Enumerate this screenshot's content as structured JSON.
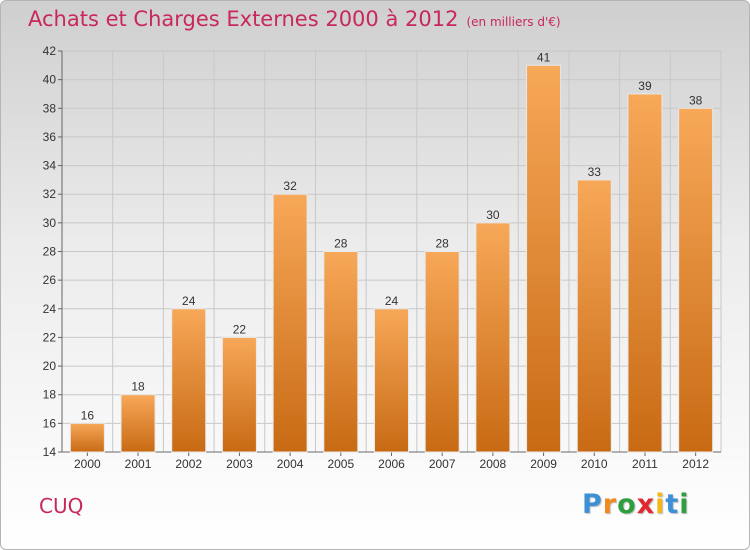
{
  "header": {
    "title": "Achats et Charges Externes 2000 à 2012",
    "subtitle": "(en milliers d'€)"
  },
  "footer": {
    "place": "CUQ",
    "brand": "Proxiti"
  },
  "colors": {
    "title": "#c8285a",
    "bar_light": "#f7a858",
    "bar_dark": "#c86a14",
    "grid": "#c8c8c8"
  },
  "chart_data": {
    "type": "bar",
    "categories": [
      "2000",
      "2001",
      "2002",
      "2003",
      "2004",
      "2005",
      "2006",
      "2007",
      "2008",
      "2009",
      "2010",
      "2011",
      "2012"
    ],
    "values": [
      16,
      18,
      24,
      22,
      32,
      28,
      24,
      28,
      30,
      41,
      33,
      39,
      38
    ],
    "ylim": [
      14,
      42
    ],
    "yticks": [
      14,
      16,
      18,
      20,
      22,
      24,
      26,
      28,
      30,
      32,
      34,
      36,
      38,
      40,
      42
    ],
    "grid": true,
    "data_labels": true
  }
}
